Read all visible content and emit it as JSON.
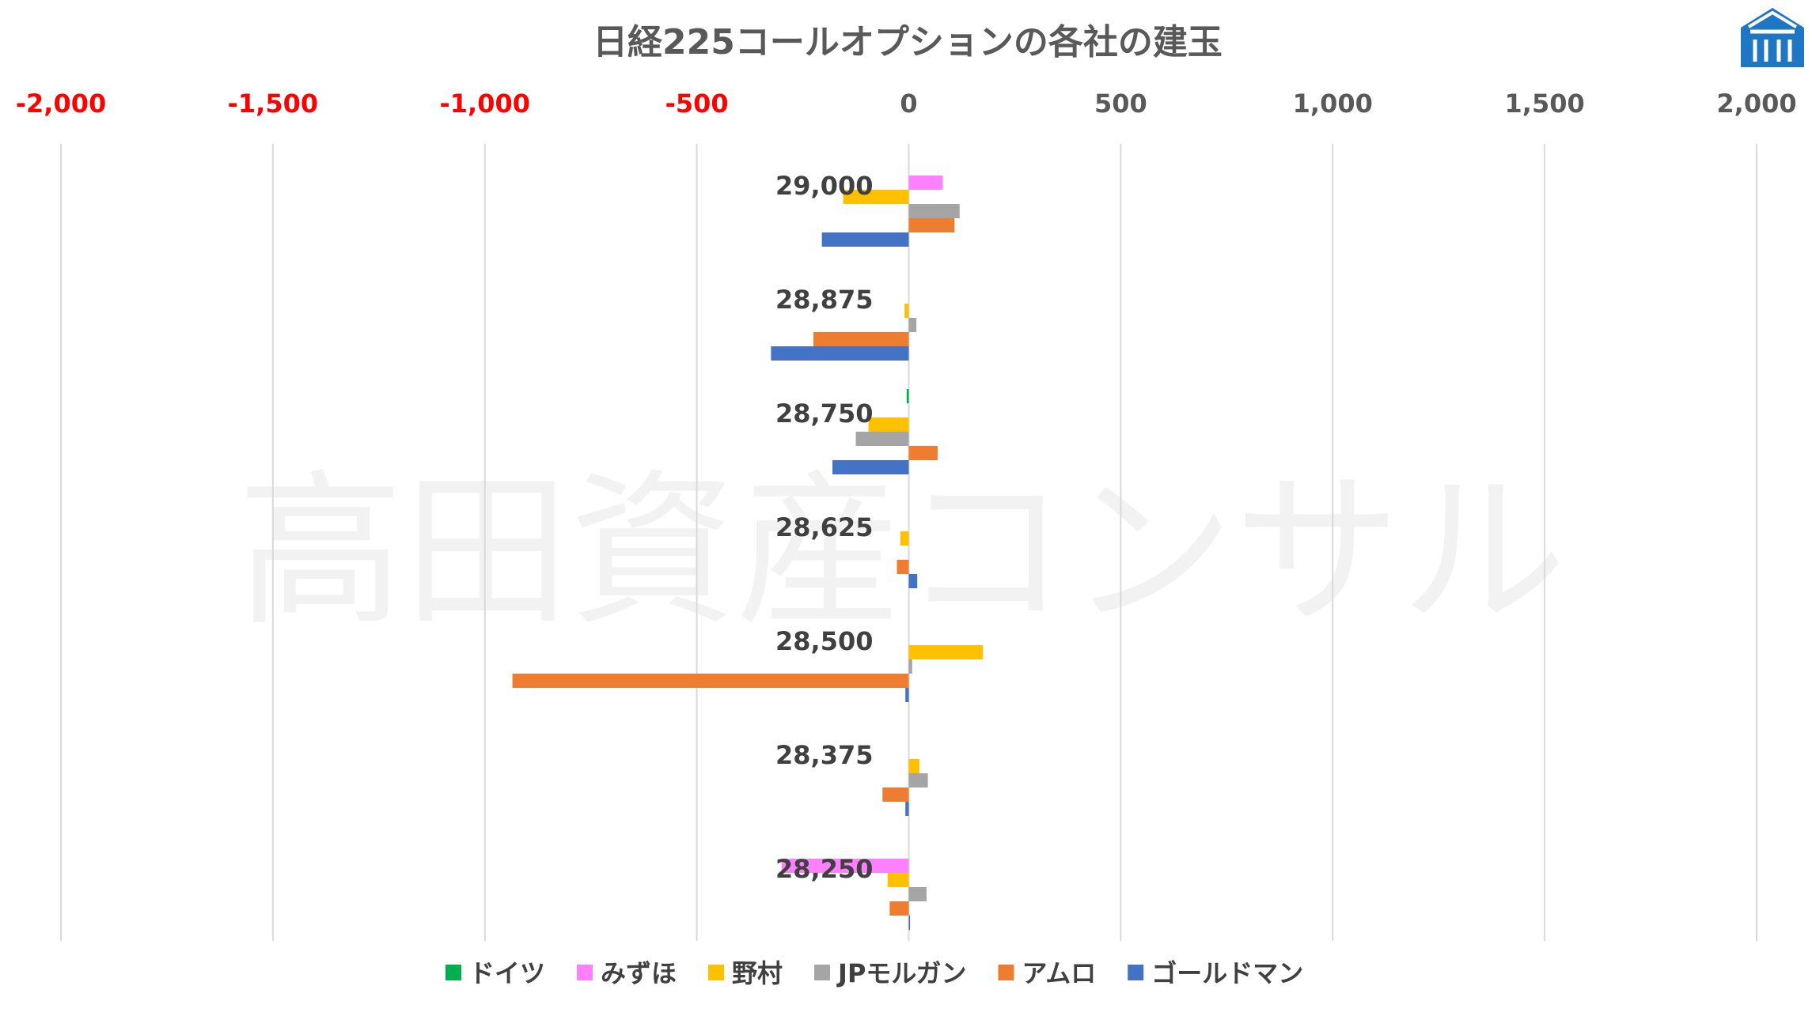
{
  "chart_data": {
    "type": "bar",
    "orientation": "horizontal",
    "title": "日経225コールオプションの各社の建玉",
    "watermark": "高田資産コンサル",
    "xlim": [
      -2000,
      2000
    ],
    "x_ticks": [
      -2000,
      -1500,
      -1000,
      -500,
      0,
      500,
      1000,
      1500,
      2000
    ],
    "x_tick_labels": [
      "-2,000",
      "-1,500",
      "-1,000",
      "-500",
      "0",
      "500",
      "1,000",
      "1,500",
      "2,000"
    ],
    "negative_tick_color": "#ff0000",
    "positive_tick_color": "#595959",
    "grid": "vertical",
    "legend_position": "bottom",
    "categories": [
      "29,000",
      "28,875",
      "28,750",
      "28,625",
      "28,500",
      "28,375",
      "28,250"
    ],
    "series": [
      {
        "name": "ドイツ",
        "color": "#00b050",
        "values": [
          0,
          0,
          -5,
          0,
          0,
          0,
          0
        ]
      },
      {
        "name": "みずほ",
        "color": "#ff80ff",
        "values": [
          80,
          0,
          0,
          0,
          0,
          0,
          -300
        ]
      },
      {
        "name": "野村",
        "color": "#ffc000",
        "values": [
          -155,
          -10,
          -95,
          -20,
          175,
          25,
          -50
        ]
      },
      {
        "name": "JPモルガン",
        "color": "#a5a5a5",
        "values": [
          120,
          18,
          -125,
          0,
          8,
          45,
          42
        ]
      },
      {
        "name": "アムロ",
        "color": "#ed7d31",
        "values": [
          108,
          -225,
          68,
          -28,
          -935,
          -62,
          -45
        ]
      },
      {
        "name": "ゴールドマン",
        "color": "#4472c4",
        "values": [
          -205,
          -325,
          -180,
          20,
          -8,
          -8,
          3
        ]
      }
    ]
  },
  "logo": {
    "name": "takata-logo",
    "color": "#1f77c4"
  }
}
